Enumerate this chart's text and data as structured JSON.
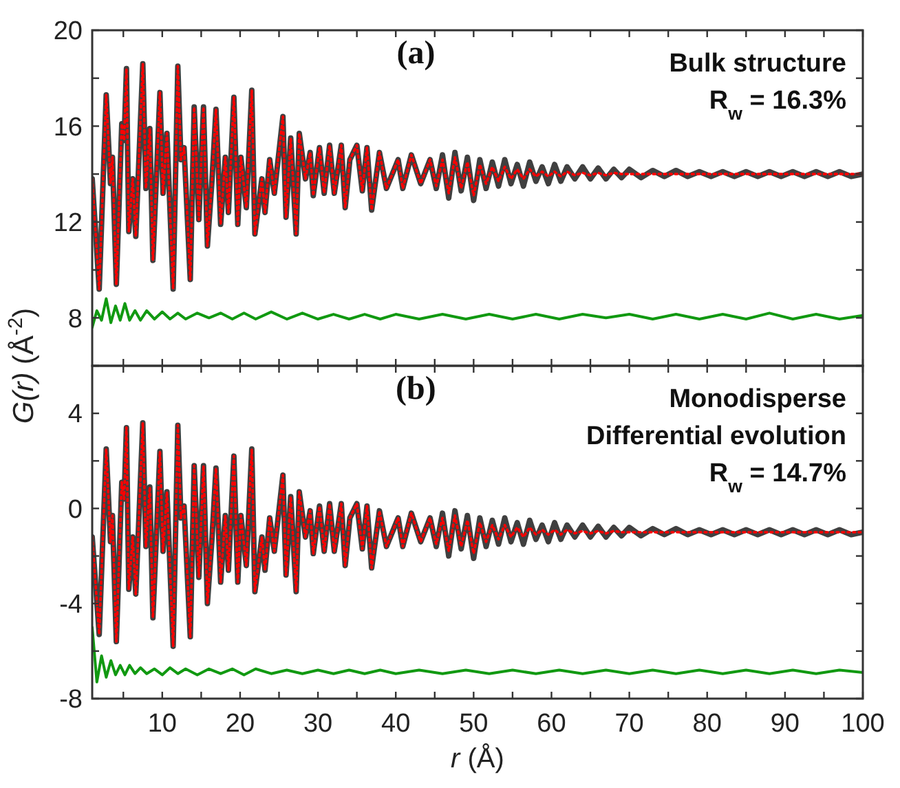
{
  "chart_data": [
    {
      "type": "line",
      "title": "(a)",
      "ylabel": "G(r) (Å$^{-2}$)",
      "tick_labels": "y",
      "annotations": [
        "Bulk structure",
        "R$_{w}$ = 16.3%"
      ],
      "xlim": [
        1,
        100
      ],
      "ylim": [
        6,
        20
      ],
      "xticks": [
        {
          "value": 5,
          "label": null
        },
        10,
        {
          "value": 15,
          "label": null
        },
        20,
        {
          "value": 25,
          "label": null
        },
        30,
        {
          "value": 35,
          "label": null
        },
        40,
        {
          "value": 45,
          "label": null
        },
        50,
        {
          "value": 55,
          "label": null
        },
        60,
        {
          "value": 65,
          "label": null
        },
        70,
        {
          "value": 75,
          "label": null
        },
        80,
        {
          "value": 85,
          "label": null
        },
        90,
        {
          "value": 95,
          "label": null
        },
        100
      ],
      "yticks": [
        {
          "value": 6,
          "label": null
        },
        8,
        {
          "value": 10,
          "label": null
        },
        12,
        {
          "value": 14,
          "label": null
        },
        16,
        {
          "value": 18,
          "label": null
        },
        20
      ],
      "x": [
        1,
        1.9,
        2.8,
        3.35,
        3.6,
        4.1,
        4.8,
        5.1,
        5.4,
        5.7,
        6.2,
        6.6,
        7.5,
        7.9,
        8.4,
        8.8,
        9.7,
        10.1,
        10.6,
        11.4,
        12,
        12.4,
        12.8,
        13.6,
        14.1,
        14.7,
        15.3,
        15.8,
        16.4,
        16.9,
        17.5,
        18.1,
        18.5,
        19.2,
        19.7,
        20.1,
        20.8,
        21.5,
        21.9,
        22.8,
        23.2,
        23.8,
        24.4,
        25.5,
        25.9,
        26.5,
        27.2,
        27.6,
        28.4,
        29,
        29.4,
        30.2,
        30.8,
        31.5,
        32.1,
        33,
        33.5,
        34.1,
        35,
        35.7,
        36.3,
        36.9,
        37.9,
        38.8,
        40.3,
        40.9,
        42,
        43.2,
        44.4,
        45.2,
        46,
        46.8,
        47.6,
        48.4,
        49.2,
        50,
        50.8,
        51.6,
        52.4,
        53.2,
        54,
        54.8,
        55.6,
        56.4,
        57.2,
        58,
        58.8,
        59.6,
        60.4,
        61.2,
        62,
        63,
        64,
        65,
        66,
        67,
        68,
        69,
        70,
        71.5,
        73,
        74.5,
        76,
        77.5,
        79,
        80.5,
        82,
        83.5,
        85,
        86.5,
        88,
        89.5,
        91,
        92.5,
        94,
        95.5,
        97,
        98.5,
        100
      ],
      "series": [
        {
          "color": "#404040",
          "line_style": "solid",
          "values": [
            13.8,
            9.2,
            17.3,
            13.6,
            14.7,
            9.4,
            16.1,
            15.4,
            18.4,
            11.6,
            13.8,
            11.4,
            18.6,
            13.4,
            15.9,
            10.4,
            17.4,
            13.2,
            15.7,
            9.2,
            18.5,
            14.6,
            15.1,
            9.6,
            16.8,
            12.1,
            16.8,
            11.0,
            13.8,
            16.7,
            11.9,
            14.7,
            12.4,
            17.2,
            11.9,
            14.7,
            12.6,
            17.5,
            11.5,
            13.8,
            12.4,
            14.6,
            13.2,
            16.4,
            12.2,
            15.5,
            11.5,
            15.7,
            13.8,
            14.9,
            13.1,
            15.1,
            13.2,
            15.2,
            13.2,
            15.2,
            12.6,
            14.6,
            15.2,
            13.3,
            15.1,
            12.5,
            14.9,
            13.4,
            14.6,
            13.4,
            14.8,
            13.6,
            14.6,
            13.4,
            14.8,
            13.0,
            14.9,
            13.3,
            14.7,
            12.9,
            14.6,
            13.4,
            14.5,
            13.5,
            14.6,
            13.6,
            14.4,
            13.5,
            14.5,
            13.7,
            14.3,
            13.6,
            14.4,
            13.7,
            14.3,
            13.8,
            14.3,
            13.8,
            14.25,
            13.8,
            14.2,
            13.85,
            14.2,
            13.85,
            14.15,
            13.9,
            14.15,
            13.9,
            14.1,
            13.9,
            14.1,
            13.9,
            14.1,
            13.9,
            14.1,
            13.9,
            14.1,
            13.9,
            14.1,
            13.9,
            14.1,
            13.9,
            14.0
          ]
        },
        {
          "color": "#ff0000",
          "line_style": "dotted",
          "values": [
            13.8,
            9.2,
            17.3,
            13.6,
            14.7,
            9.4,
            16.1,
            15.4,
            18.4,
            11.6,
            13.8,
            11.4,
            18.6,
            13.4,
            15.9,
            10.4,
            17.4,
            13.2,
            15.7,
            9.2,
            18.5,
            14.6,
            15.1,
            9.6,
            16.8,
            12.1,
            16.8,
            11.0,
            13.8,
            16.7,
            11.9,
            14.7,
            12.4,
            17.2,
            11.9,
            14.7,
            12.6,
            17.5,
            11.5,
            13.8,
            12.4,
            14.6,
            13.2,
            16.4,
            12.2,
            15.5,
            11.5,
            15.7,
            13.8,
            14.9,
            13.1,
            15.1,
            13.2,
            15.2,
            13.2,
            15.2,
            12.6,
            14.6,
            15.2,
            13.3,
            15.1,
            12.5,
            14.9,
            13.4,
            14.6,
            13.4,
            14.8,
            13.6,
            14.6,
            13.5,
            14.6,
            13.2,
            14.7,
            13.4,
            14.5,
            13.1,
            14.4,
            13.6,
            14.3,
            13.7,
            14.3,
            13.8,
            14.2,
            13.8,
            14.2,
            13.9,
            14.1,
            13.9,
            14.1,
            13.9,
            14.1,
            13.95,
            14.05,
            13.95,
            14.05,
            13.95,
            14.05,
            14.0,
            14.0,
            14.0,
            14.0,
            14.0,
            14.0,
            14.0,
            14.0,
            14.0,
            14.0,
            14.0,
            14.0,
            14.0,
            14.0,
            14.0,
            14.0,
            14.0,
            14.0,
            14.0,
            14.0,
            14.0,
            14.0
          ]
        },
        {
          "color": "#119911",
          "line_style": "solid",
          "x": [
            1,
            1.6,
            2.2,
            2.8,
            3.4,
            4,
            4.6,
            5.2,
            5.8,
            6.5,
            7.2,
            8,
            9,
            10,
            11,
            12,
            13,
            14.5,
            16,
            17.5,
            19,
            20.5,
            22,
            24,
            26,
            28,
            30,
            32,
            34,
            36,
            38,
            40,
            43,
            46,
            49,
            52,
            55,
            58,
            61,
            64,
            67,
            70,
            73,
            76,
            79,
            82,
            85,
            88,
            91,
            94,
            97,
            100
          ],
          "values": [
            7.6,
            8.3,
            7.9,
            8.8,
            7.8,
            8.5,
            7.9,
            8.6,
            7.9,
            8.3,
            7.9,
            8.3,
            7.95,
            8.25,
            7.95,
            8.2,
            7.95,
            8.2,
            8.0,
            8.2,
            7.95,
            8.2,
            7.95,
            8.25,
            7.95,
            8.2,
            7.95,
            8.15,
            7.95,
            8.15,
            7.95,
            8.15,
            7.95,
            8.15,
            7.95,
            8.15,
            7.95,
            8.15,
            7.95,
            8.15,
            8.0,
            8.15,
            7.95,
            8.15,
            7.95,
            8.15,
            7.95,
            8.2,
            7.95,
            8.15,
            7.95,
            8.1
          ]
        }
      ]
    },
    {
      "type": "line",
      "title": "(b)",
      "xlabel": "r (Å)",
      "annotations": [
        "Monodisperse",
        "Differential evolution",
        "R$_{w}$ = 14.7%"
      ],
      "xlim": [
        1,
        100
      ],
      "ylim": [
        -8,
        6
      ],
      "xticks": [
        {
          "value": 5,
          "label": null
        },
        10,
        {
          "value": 15,
          "label": null
        },
        20,
        {
          "value": 25,
          "label": null
        },
        30,
        {
          "value": 35,
          "label": null
        },
        40,
        {
          "value": 45,
          "label": null
        },
        50,
        {
          "value": 55,
          "label": null
        },
        60,
        {
          "value": 65,
          "label": null
        },
        70,
        {
          "value": 75,
          "label": null
        },
        80,
        {
          "value": 85,
          "label": null
        },
        90,
        {
          "value": 95,
          "label": null
        },
        100
      ],
      "yticks": [
        -8,
        {
          "value": -6,
          "label": null
        },
        -4,
        {
          "value": -2,
          "label": null
        },
        0,
        {
          "value": 2,
          "label": null
        },
        4,
        {
          "value": 6,
          "label": null
        }
      ],
      "x": [
        1,
        1.9,
        2.8,
        3.35,
        3.6,
        4.1,
        4.8,
        5.1,
        5.4,
        5.7,
        6.2,
        6.6,
        7.5,
        7.9,
        8.4,
        8.8,
        9.7,
        10.1,
        10.6,
        11.4,
        12,
        12.4,
        12.8,
        13.6,
        14.1,
        14.7,
        15.3,
        15.8,
        16.4,
        16.9,
        17.5,
        18.1,
        18.5,
        19.2,
        19.7,
        20.1,
        20.8,
        21.5,
        21.9,
        22.8,
        23.2,
        23.8,
        24.4,
        25.5,
        25.9,
        26.5,
        27.2,
        27.6,
        28.4,
        29,
        29.4,
        30.2,
        30.8,
        31.5,
        32.1,
        33,
        33.5,
        34.1,
        35,
        35.7,
        36.3,
        36.9,
        37.9,
        38.8,
        40.3,
        40.9,
        42,
        43.2,
        44.4,
        45.2,
        46,
        46.8,
        47.6,
        48.4,
        49.2,
        50,
        50.8,
        51.6,
        52.4,
        53.2,
        54,
        54.8,
        55.6,
        56.4,
        57.2,
        58,
        58.8,
        59.6,
        60.4,
        61.2,
        62,
        63,
        64,
        65,
        66,
        67,
        68,
        69,
        70,
        71.5,
        73,
        74.5,
        76,
        77.5,
        79,
        80.5,
        82,
        83.5,
        85,
        86.5,
        88,
        89.5,
        91,
        92.5,
        94,
        95.5,
        97,
        98.5,
        100
      ],
      "series": [
        {
          "color": "#404040",
          "line_style": "solid",
          "values": [
            -1.2,
            -5.3,
            2.5,
            -1.4,
            -0.3,
            -5.6,
            1.1,
            0.4,
            3.4,
            -3.4,
            -1.2,
            -3.6,
            3.6,
            -1.6,
            0.9,
            -4.6,
            2.4,
            -1.8,
            0.7,
            -5.8,
            3.5,
            -0.4,
            0.1,
            -5.4,
            1.8,
            -2.9,
            1.8,
            -4.0,
            -1.2,
            1.7,
            -3.1,
            -0.3,
            -2.6,
            2.2,
            -3.1,
            -0.3,
            -2.4,
            2.5,
            -3.5,
            -1.2,
            -2.6,
            -0.4,
            -1.8,
            1.4,
            -2.8,
            0.5,
            -3.5,
            0.7,
            -1.2,
            -0.1,
            -1.9,
            0.1,
            -1.8,
            0.2,
            -1.8,
            0.2,
            -2.4,
            -0.4,
            0.2,
            -1.7,
            0.1,
            -2.5,
            -0.1,
            -1.6,
            -0.4,
            -1.6,
            -0.2,
            -1.4,
            -0.4,
            -1.6,
            -0.2,
            -2.0,
            -0.1,
            -1.7,
            -0.3,
            -2.1,
            -0.4,
            -1.6,
            -0.5,
            -1.5,
            -0.4,
            -1.4,
            -0.6,
            -1.5,
            -0.5,
            -1.3,
            -0.7,
            -1.4,
            -0.6,
            -1.3,
            -0.7,
            -1.2,
            -0.7,
            -1.2,
            -0.75,
            -1.2,
            -0.8,
            -1.15,
            -0.8,
            -1.15,
            -0.85,
            -1.1,
            -0.85,
            -1.1,
            -0.9,
            -1.1,
            -0.9,
            -1.1,
            -0.9,
            -1.1,
            -0.9,
            -1.1,
            -0.9,
            -1.1,
            -0.9,
            -1.1,
            -0.9,
            -1.1,
            -1.0
          ]
        },
        {
          "color": "#ff0000",
          "line_style": "dotted",
          "values": [
            -1.2,
            -5.3,
            2.5,
            -1.4,
            -0.3,
            -5.6,
            1.1,
            0.4,
            3.4,
            -3.4,
            -1.2,
            -3.6,
            3.6,
            -1.6,
            0.9,
            -4.6,
            2.4,
            -1.8,
            0.7,
            -5.8,
            3.5,
            -0.4,
            0.1,
            -5.4,
            1.8,
            -2.9,
            1.8,
            -4.0,
            -1.2,
            1.7,
            -3.1,
            -0.3,
            -2.6,
            2.2,
            -3.1,
            -0.3,
            -2.4,
            2.5,
            -3.5,
            -1.2,
            -2.6,
            -0.4,
            -1.8,
            1.4,
            -2.8,
            0.5,
            -3.5,
            0.7,
            -1.2,
            -0.1,
            -1.9,
            0.1,
            -1.8,
            0.2,
            -1.8,
            0.2,
            -2.4,
            -0.4,
            0.2,
            -1.7,
            0.1,
            -2.5,
            -0.1,
            -1.6,
            -0.4,
            -1.6,
            -0.2,
            -1.4,
            -0.4,
            -1.5,
            -0.4,
            -1.8,
            -0.3,
            -1.6,
            -0.5,
            -1.9,
            -0.6,
            -1.4,
            -0.7,
            -1.3,
            -0.7,
            -1.2,
            -0.8,
            -1.2,
            -0.8,
            -1.1,
            -0.9,
            -1.1,
            -0.9,
            -1.1,
            -0.9,
            -1.05,
            -0.95,
            -1.05,
            -0.95,
            -1.05,
            -0.95,
            -1.0,
            -1.0,
            -1.0,
            -1.0,
            -1.0,
            -1.0,
            -1.0,
            -1.0,
            -1.0,
            -1.0,
            -1.0,
            -1.0,
            -1.0,
            -1.0,
            -1.0,
            -1.0,
            -1.0,
            -1.0,
            -1.0,
            -1.0,
            -1.0,
            -1.0
          ]
        },
        {
          "color": "#119911",
          "line_style": "solid",
          "x": [
            1,
            1.6,
            2.2,
            2.8,
            3.4,
            4,
            4.6,
            5.2,
            5.8,
            6.5,
            7.2,
            8,
            9,
            10,
            11,
            12,
            13,
            14.5,
            16,
            17.5,
            19,
            20.5,
            22,
            24,
            26,
            28,
            30,
            32,
            34,
            36,
            38,
            40,
            43,
            46,
            49,
            52,
            55,
            58,
            61,
            64,
            67,
            70,
            73,
            76,
            79,
            82,
            85,
            88,
            91,
            94,
            97,
            100
          ],
          "values": [
            -5.0,
            -7.3,
            -6.2,
            -7.1,
            -6.4,
            -7.0,
            -6.6,
            -7.0,
            -6.6,
            -6.95,
            -6.7,
            -6.95,
            -6.75,
            -7.0,
            -6.7,
            -6.95,
            -6.75,
            -7.0,
            -6.75,
            -6.95,
            -6.75,
            -7.0,
            -6.75,
            -6.95,
            -6.8,
            -6.95,
            -6.8,
            -6.95,
            -6.8,
            -6.95,
            -6.8,
            -6.95,
            -6.8,
            -6.95,
            -6.8,
            -6.95,
            -6.8,
            -6.95,
            -6.8,
            -6.95,
            -6.8,
            -6.95,
            -6.8,
            -6.95,
            -6.8,
            -6.95,
            -6.8,
            -6.95,
            -6.8,
            -6.95,
            -6.8,
            -6.9
          ]
        }
      ]
    }
  ]
}
